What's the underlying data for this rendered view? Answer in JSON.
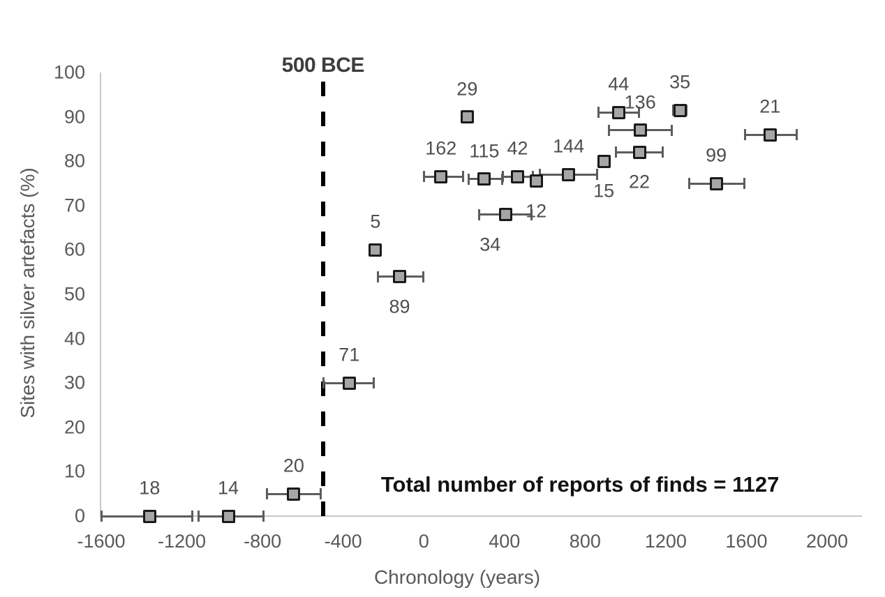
{
  "chart_data": {
    "type": "scatter",
    "title": "",
    "xlabel": "Chronology (years)",
    "ylabel": "Sites with silver artefacts (%)",
    "xlim": [
      -1600,
      2000
    ],
    "ylim": [
      0,
      100
    ],
    "x_ticks": [
      -1600,
      -1200,
      -800,
      -400,
      0,
      400,
      800,
      1200,
      1600,
      2000
    ],
    "y_ticks": [
      0,
      10,
      20,
      30,
      40,
      50,
      60,
      70,
      80,
      90,
      100
    ],
    "grid": false,
    "legend": null,
    "marker": "square-with-horizontal-error-bars",
    "reference_line": {
      "x": -500,
      "label": "500 BCE",
      "style": "dashed-vertical"
    },
    "annotation": {
      "text": "Total number of reports of finds = 1127",
      "x": 775,
      "y": 7
    },
    "total_reports": 1127,
    "points": [
      {
        "label": "18",
        "x": -1360,
        "y": 0,
        "xerr": [
          -1600,
          -1145
        ],
        "label_pos": "above"
      },
      {
        "label": "14",
        "x": -970,
        "y": 0,
        "xerr": [
          -1120,
          -795
        ],
        "label_pos": "above"
      },
      {
        "label": "20",
        "x": -645,
        "y": 5,
        "xerr": [
          -780,
          -510
        ],
        "label_pos": "above"
      },
      {
        "label": "71",
        "x": -370,
        "y": 30,
        "xerr": [
          -500,
          -245
        ],
        "label_pos": "above"
      },
      {
        "label": "5",
        "x": -240,
        "y": 60,
        "xerr": null,
        "label_pos": "above"
      },
      {
        "label": "89",
        "x": -120,
        "y": 54,
        "xerr": [
          -230,
          0
        ],
        "label_pos": "below"
      },
      {
        "label": "162",
        "x": 85,
        "y": 76.5,
        "xerr": [
          0,
          195
        ],
        "label_pos": "above"
      },
      {
        "label": "29",
        "x": 215,
        "y": 90,
        "xerr": null,
        "label_pos": "above"
      },
      {
        "label": "115",
        "x": 300,
        "y": 76,
        "xerr": [
          220,
          390
        ],
        "label_pos": "above"
      },
      {
        "label": "42",
        "x": 465,
        "y": 76.5,
        "xerr": [
          390,
          543
        ],
        "label_pos": "above"
      },
      {
        "label": "12",
        "x": 557,
        "y": 75.5,
        "xerr": null,
        "label_pos": "below"
      },
      {
        "label": "34",
        "x": 405,
        "y": 68,
        "xerr": [
          273,
          537
        ],
        "label_pos": "below",
        "label_dx": -22
      },
      {
        "label": "144",
        "x": 718,
        "y": 77,
        "xerr": [
          575,
          860
        ],
        "label_pos": "above"
      },
      {
        "label": "15",
        "x": 893,
        "y": 80,
        "xerr": null,
        "label_pos": "below"
      },
      {
        "label": "44",
        "x": 966,
        "y": 91,
        "xerr": [
          865,
          1070
        ],
        "label_pos": "above"
      },
      {
        "label": "136",
        "x": 1073,
        "y": 87,
        "xerr": [
          915,
          1230
        ],
        "label_pos": "above"
      },
      {
        "label": "22",
        "x": 1069,
        "y": 82,
        "xerr": [
          950,
          1185
        ],
        "label_pos": "below"
      },
      {
        "label": "35",
        "x": 1270,
        "y": 91.5,
        "xerr": [
          1235,
          1305
        ],
        "label_pos": "above"
      },
      {
        "label": "99",
        "x": 1450,
        "y": 75,
        "xerr": [
          1315,
          1590
        ],
        "label_pos": "above"
      },
      {
        "label": "21",
        "x": 1717,
        "y": 86,
        "xerr": [
          1590,
          1850
        ],
        "label_pos": "above"
      }
    ]
  },
  "colors": {
    "background": "#ffffff",
    "point_fill": "#a6a6a6",
    "point_border": "#1a1a1a",
    "error_bar": "#5c5c5c",
    "axis_line": "#c8c8c8",
    "tick_text": "#595959",
    "label_text": "#4f4f4f",
    "ref_line": "#000000",
    "ref_label": "#3d3d3d",
    "annotation_text": "#121212"
  }
}
